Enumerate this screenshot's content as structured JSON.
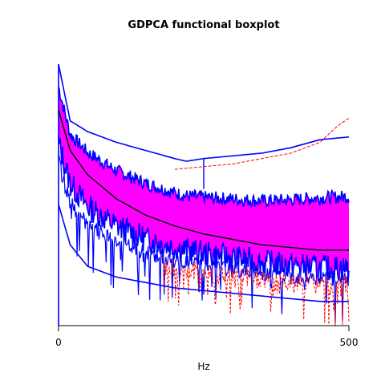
{
  "chart_data": {
    "type": "line",
    "title": "GDPCA functional boxplot",
    "xlabel": "Hz",
    "ylabel": "",
    "xlim": [
      0,
      500
    ],
    "x_ticks": [
      "0",
      "500"
    ],
    "grid": false,
    "legend": "none",
    "colors": {
      "central_region": "#ff00ff",
      "envelope": "#0000ff",
      "median": "#000000",
      "outliers": "#ff0000"
    },
    "series": [
      {
        "role": "median",
        "x": [
          0,
          20,
          50,
          100,
          150,
          200,
          250,
          300,
          350,
          400,
          450,
          500
        ],
        "y": [
          0.8,
          0.65,
          0.56,
          0.47,
          0.41,
          0.37,
          0.34,
          0.32,
          0.3,
          0.29,
          0.28,
          0.28
        ]
      },
      {
        "role": "upper-whisker",
        "x": [
          0,
          20,
          50,
          100,
          150,
          200,
          220,
          250,
          300,
          350,
          400,
          450,
          500
        ],
        "y": [
          0.97,
          0.76,
          0.72,
          0.68,
          0.65,
          0.62,
          0.61,
          0.62,
          0.63,
          0.64,
          0.66,
          0.69,
          0.7
        ]
      },
      {
        "role": "lower-whisker",
        "x": [
          0,
          20,
          50,
          100,
          150,
          200,
          250,
          300,
          350,
          400,
          450,
          500
        ],
        "y": [
          0.45,
          0.3,
          0.22,
          0.18,
          0.16,
          0.14,
          0.13,
          0.12,
          0.11,
          0.1,
          0.09,
          0.09
        ]
      },
      {
        "role": "outlier",
        "x": [
          200,
          250,
          300,
          350,
          400,
          450,
          480,
          500
        ],
        "y": [
          0.58,
          0.59,
          0.6,
          0.62,
          0.64,
          0.68,
          0.74,
          0.77
        ]
      }
    ]
  }
}
